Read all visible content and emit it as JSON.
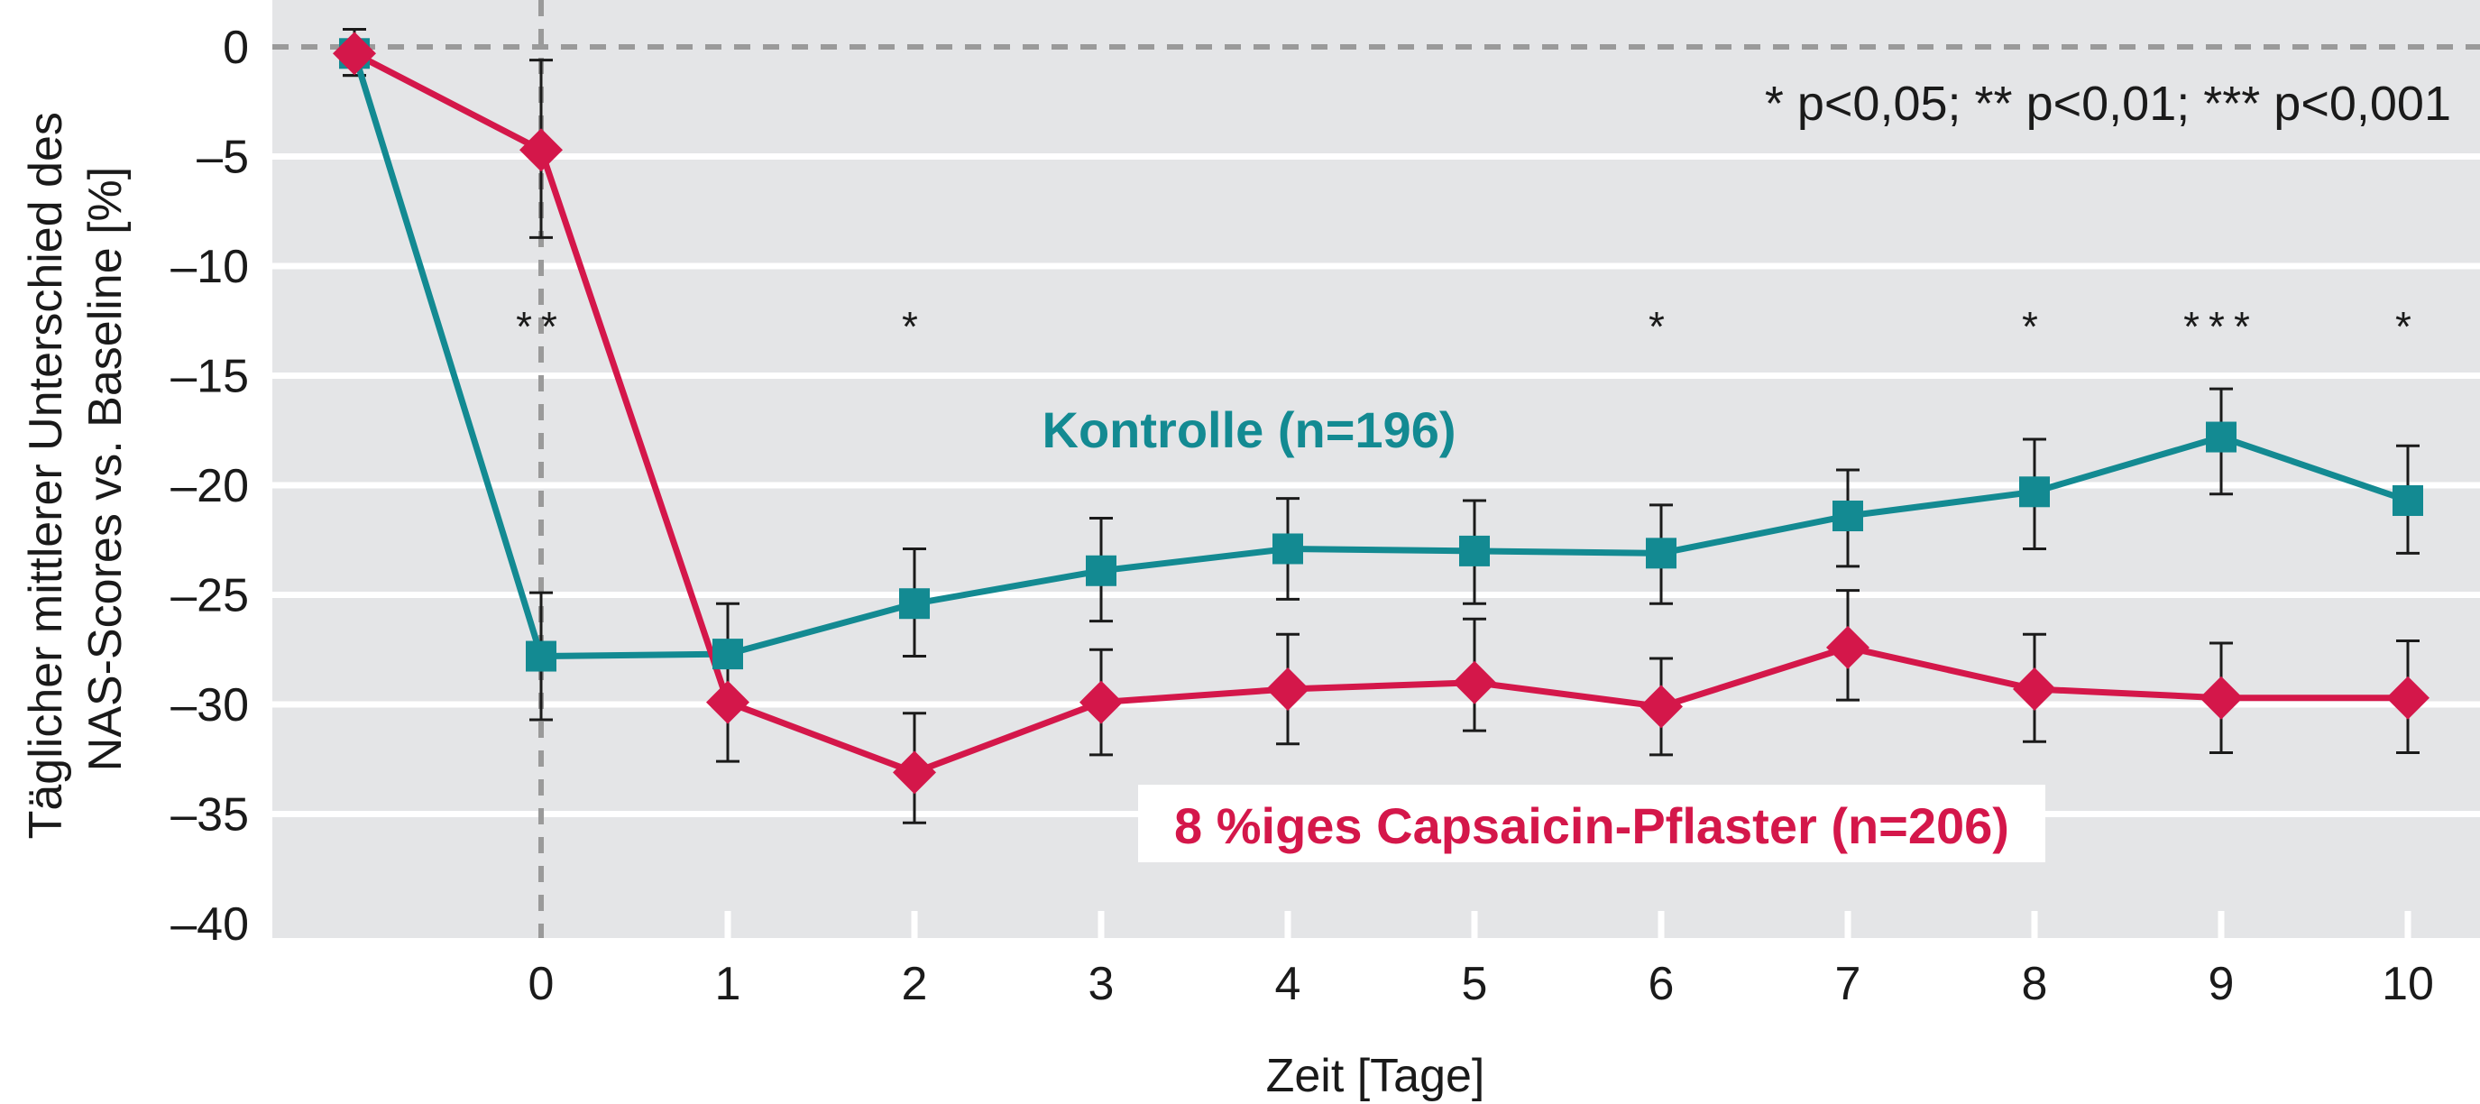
{
  "chart_data": {
    "type": "line",
    "xlabel": "Zeit [Tage]",
    "ylabel_lines": [
      "Täglicher mittlerer Unterschied des",
      "NAS-Scores vs. Baseline [%]"
    ],
    "x_ticks": [
      "0",
      "1",
      "2",
      "3",
      "4",
      "5",
      "6",
      "7",
      "8",
      "9",
      "10"
    ],
    "y_ticks": [
      "0",
      "–5",
      "–10",
      "–15",
      "–20",
      "–25",
      "–30",
      "–35",
      "–40"
    ],
    "ylim": [
      -40,
      0
    ],
    "xlim": [
      -1,
      10
    ],
    "grid": true,
    "significance_note": "* p<0,05; ** p<0,01; *** p<0,001",
    "significance_marks": [
      {
        "x": 0,
        "label": "**"
      },
      {
        "x": 2,
        "label": "*"
      },
      {
        "x": 6,
        "label": "*"
      },
      {
        "x": 8,
        "label": "*"
      },
      {
        "x": 9,
        "label": "***"
      },
      {
        "x": 10,
        "label": "*"
      }
    ],
    "series": [
      {
        "name": "Kontrolle (n=196)",
        "color": "#138a92",
        "marker": "square",
        "x": [
          -1,
          0,
          1,
          2,
          3,
          4,
          5,
          6,
          7,
          8,
          9,
          10
        ],
        "y": [
          -0.3,
          -27.8,
          -27.7,
          -25.4,
          -23.9,
          -22.9,
          -23.0,
          -23.1,
          -21.4,
          -20.3,
          -17.8,
          -20.7
        ],
        "err_low": [
          -1.3,
          -30.7,
          -30.0,
          -27.8,
          -26.2,
          -25.2,
          -25.4,
          -25.4,
          -23.7,
          -22.9,
          -20.4,
          -23.1
        ],
        "err_high": [
          0.8,
          -24.9,
          -25.4,
          -22.9,
          -21.5,
          -20.6,
          -20.7,
          -20.9,
          -19.3,
          -17.9,
          -15.6,
          -18.2
        ]
      },
      {
        "name": "8 %iges Capsaicin-Pflaster (n=206)",
        "color": "#d4174a",
        "marker": "diamond",
        "x": [
          -1,
          0,
          1,
          2,
          3,
          4,
          5,
          6,
          7,
          8,
          9,
          10
        ],
        "y": [
          -0.3,
          -4.7,
          -29.9,
          -33.1,
          -29.9,
          -29.3,
          -29.0,
          -30.1,
          -27.4,
          -29.3,
          -29.7,
          -29.7
        ],
        "err_low": [
          -1.3,
          -8.7,
          -32.6,
          -35.4,
          -32.3,
          -31.8,
          -31.2,
          -32.3,
          -29.8,
          -31.7,
          -32.2,
          -32.2
        ],
        "err_high": [
          0.8,
          -0.6,
          -27.3,
          -30.4,
          -27.5,
          -26.8,
          -26.1,
          -27.9,
          -24.8,
          -26.8,
          -27.2,
          -27.1
        ]
      }
    ]
  }
}
